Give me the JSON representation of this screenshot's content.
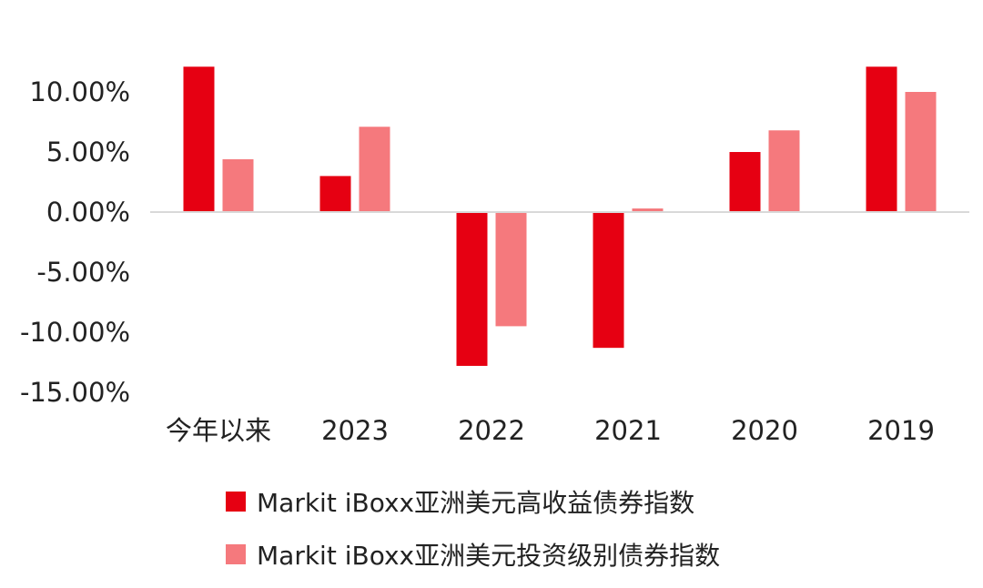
{
  "chart_data": {
    "type": "bar",
    "title": "",
    "xlabel": "",
    "ylabel": "",
    "categories": [
      "今年以来",
      "2023",
      "2022",
      "2021",
      "2020",
      "2019"
    ],
    "series": [
      {
        "name": "Markit iBoxx亚洲美元高收益债券指数",
        "color": "#e60012",
        "values": [
          12.1,
          3.0,
          -12.8,
          -11.3,
          5.0,
          12.1
        ]
      },
      {
        "name": "Markit iBoxx亚洲美元投资级别债券指数",
        "color": "#f5797d",
        "values": [
          4.4,
          7.1,
          -9.5,
          0.3,
          6.8,
          10.0
        ]
      }
    ],
    "ylim": [
      -15,
      12.1
    ],
    "yticks": [
      10,
      5,
      0,
      -5,
      -10,
      -15
    ],
    "ytick_labels": [
      "10.00%",
      "5.00%",
      "0.00%",
      "-5.00%",
      "-10.00%",
      "-15.00%"
    ],
    "grid": false,
    "legend_position": "bottom"
  }
}
